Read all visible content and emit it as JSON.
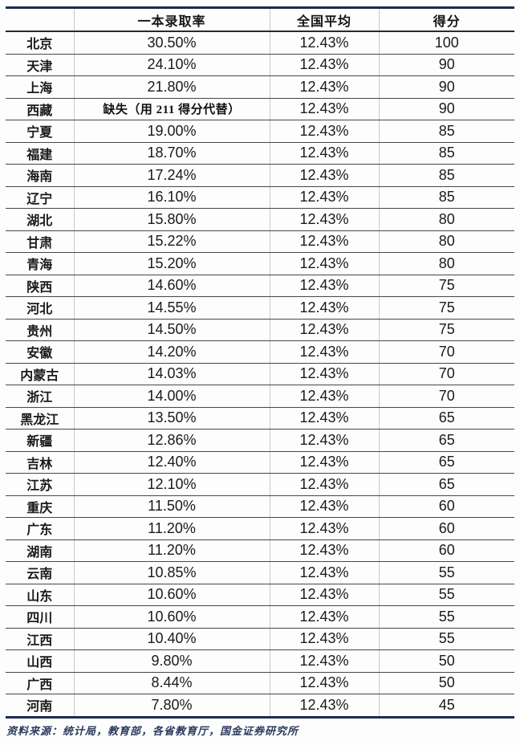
{
  "chart_data": {
    "type": "table",
    "columns": [
      "",
      "一本录取率",
      "全国平均",
      "得分"
    ],
    "rows": [
      {
        "province": "北京",
        "rate": "30.50%",
        "national_avg": "12.43%",
        "score": "100"
      },
      {
        "province": "天津",
        "rate": "24.10%",
        "national_avg": "12.43%",
        "score": "90"
      },
      {
        "province": "上海",
        "rate": "21.80%",
        "national_avg": "12.43%",
        "score": "90"
      },
      {
        "province": "西藏",
        "rate": "缺失（用 211 得分代替）",
        "national_avg": "12.43%",
        "score": "90"
      },
      {
        "province": "宁夏",
        "rate": "19.00%",
        "national_avg": "12.43%",
        "score": "85"
      },
      {
        "province": "福建",
        "rate": "18.70%",
        "national_avg": "12.43%",
        "score": "85"
      },
      {
        "province": "海南",
        "rate": "17.24%",
        "national_avg": "12.43%",
        "score": "85"
      },
      {
        "province": "辽宁",
        "rate": "16.10%",
        "national_avg": "12.43%",
        "score": "85"
      },
      {
        "province": "湖北",
        "rate": "15.80%",
        "national_avg": "12.43%",
        "score": "80"
      },
      {
        "province": "甘肃",
        "rate": "15.22%",
        "national_avg": "12.43%",
        "score": "80"
      },
      {
        "province": "青海",
        "rate": "15.20%",
        "national_avg": "12.43%",
        "score": "80"
      },
      {
        "province": "陕西",
        "rate": "14.60%",
        "national_avg": "12.43%",
        "score": "75"
      },
      {
        "province": "河北",
        "rate": "14.55%",
        "national_avg": "12.43%",
        "score": "75"
      },
      {
        "province": "贵州",
        "rate": "14.50%",
        "national_avg": "12.43%",
        "score": "75"
      },
      {
        "province": "安徽",
        "rate": "14.20%",
        "national_avg": "12.43%",
        "score": "70"
      },
      {
        "province": "内蒙古",
        "rate": "14.03%",
        "national_avg": "12.43%",
        "score": "70"
      },
      {
        "province": "浙江",
        "rate": "14.00%",
        "national_avg": "12.43%",
        "score": "70"
      },
      {
        "province": "黑龙江",
        "rate": "13.50%",
        "national_avg": "12.43%",
        "score": "65"
      },
      {
        "province": "新疆",
        "rate": "12.86%",
        "national_avg": "12.43%",
        "score": "65"
      },
      {
        "province": "吉林",
        "rate": "12.40%",
        "national_avg": "12.43%",
        "score": "65"
      },
      {
        "province": "江苏",
        "rate": "12.10%",
        "national_avg": "12.43%",
        "score": "65"
      },
      {
        "province": "重庆",
        "rate": "11.50%",
        "national_avg": "12.43%",
        "score": "60"
      },
      {
        "province": "广东",
        "rate": "11.20%",
        "national_avg": "12.43%",
        "score": "60"
      },
      {
        "province": "湖南",
        "rate": "11.20%",
        "national_avg": "12.43%",
        "score": "60"
      },
      {
        "province": "云南",
        "rate": "10.85%",
        "national_avg": "12.43%",
        "score": "55"
      },
      {
        "province": "山东",
        "rate": "10.60%",
        "national_avg": "12.43%",
        "score": "55"
      },
      {
        "province": "四川",
        "rate": "10.60%",
        "national_avg": "12.43%",
        "score": "55"
      },
      {
        "province": "江西",
        "rate": "10.40%",
        "national_avg": "12.43%",
        "score": "55"
      },
      {
        "province": "山西",
        "rate": "9.80%",
        "national_avg": "12.43%",
        "score": "50"
      },
      {
        "province": "广西",
        "rate": "8.44%",
        "national_avg": "12.43%",
        "score": "50"
      },
      {
        "province": "河南",
        "rate": "7.80%",
        "national_avg": "12.43%",
        "score": "45"
      }
    ]
  },
  "footer": {
    "source": "资料来源：统计局，教育部，各省教育厅，国金证券研究所"
  },
  "colors": {
    "accent_border": "#1d2b52",
    "header_rule": "#2b2b2b",
    "row_rule": "#474747",
    "column_rule": "#c8c8c8",
    "text": "#1a1a1a",
    "footer_text": "#2b3a5c",
    "background": "#fdfdfd"
  }
}
